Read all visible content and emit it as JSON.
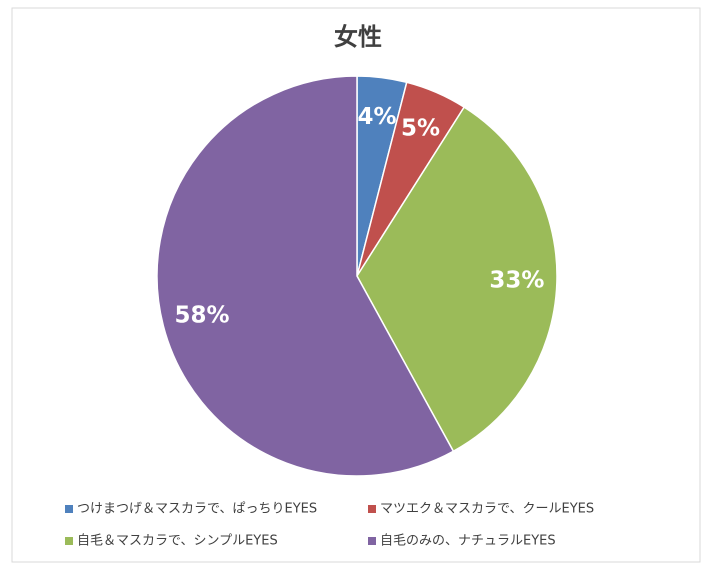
{
  "chart_data": {
    "type": "pie",
    "title": "女性",
    "categories": [
      "つけまつげ＆マスカラで、ぱっちりEYES",
      "マツエク＆マスカラで、クールEYES",
      "自毛＆マスカラで、シンプルEYES",
      "自毛のみの、ナチュラルEYES"
    ],
    "values": [
      4,
      5,
      33,
      58
    ],
    "value_labels": [
      "4%",
      "5%",
      "33%",
      "58%"
    ],
    "colors": [
      "#4f81bd",
      "#c0504d",
      "#9bbb59",
      "#8064a2"
    ],
    "legend": "bottom"
  }
}
